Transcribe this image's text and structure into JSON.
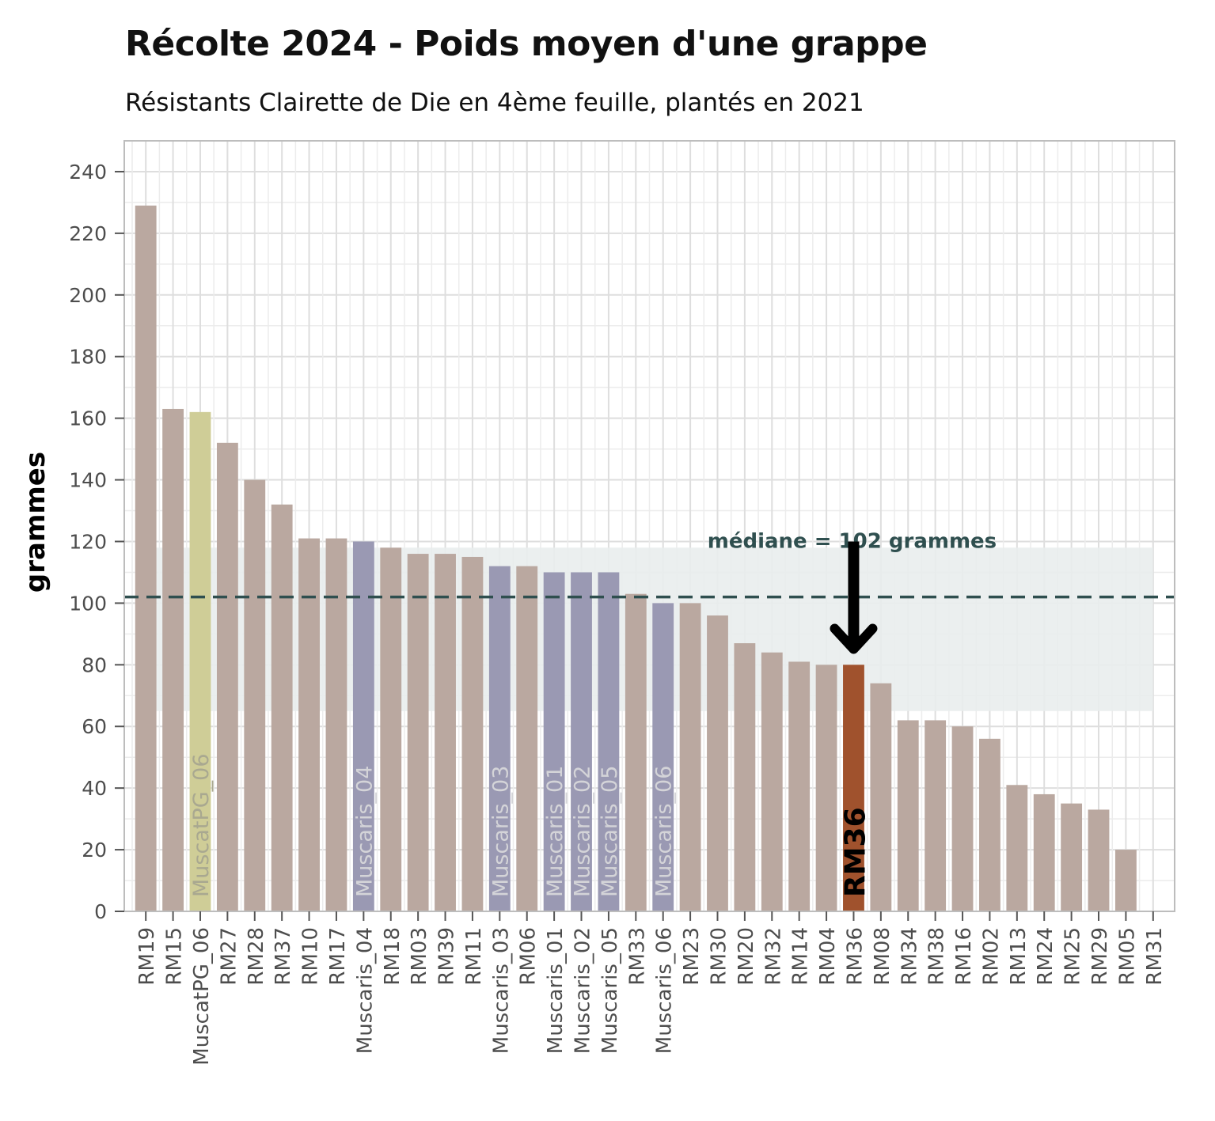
{
  "chart_data": {
    "type": "bar",
    "title": "Récolte 2024 - Poids moyen d'une grappe",
    "subtitle": "Résistants Clairette de Die en 4ème feuille, plantés en 2021",
    "xlabel": "",
    "ylabel": "grammes",
    "ylim": [
      0,
      250
    ],
    "yticks": [
      0,
      20,
      40,
      60,
      80,
      100,
      120,
      140,
      160,
      180,
      200,
      220,
      240
    ],
    "grid": true,
    "categories": [
      "RM19",
      "RM15",
      "MuscatPG_06",
      "RM27",
      "RM28",
      "RM37",
      "RM10",
      "RM17",
      "Muscaris_04",
      "RM18",
      "RM03",
      "RM39",
      "RM11",
      "Muscaris_03",
      "RM06",
      "Muscaris_01",
      "Muscaris_02",
      "Muscaris_05",
      "RM33",
      "Muscaris_06",
      "RM23",
      "RM30",
      "RM20",
      "RM32",
      "RM14",
      "RM04",
      "RM36",
      "RM08",
      "RM34",
      "RM38",
      "RM16",
      "RM02",
      "RM13",
      "RM24",
      "RM25",
      "RM29",
      "RM05",
      "RM31"
    ],
    "values": [
      229,
      163,
      162,
      152,
      140,
      132,
      121,
      121,
      120,
      118,
      116,
      116,
      115,
      112,
      112,
      110,
      110,
      110,
      103,
      100,
      100,
      96,
      87,
      84,
      81,
      80,
      80,
      74,
      62,
      62,
      60,
      56,
      41,
      38,
      35,
      33,
      20,
      null
    ],
    "groups": [
      "RM",
      "RM",
      "MuscatPG",
      "RM",
      "RM",
      "RM",
      "RM",
      "RM",
      "Muscaris",
      "RM",
      "RM",
      "RM",
      "RM",
      "Muscaris",
      "RM",
      "Muscaris",
      "Muscaris",
      "Muscaris",
      "RM",
      "Muscaris",
      "RM",
      "RM",
      "RM",
      "RM",
      "RM",
      "RM",
      "highlight",
      "RM",
      "RM",
      "RM",
      "RM",
      "RM",
      "RM",
      "RM",
      "RM",
      "RM",
      "RM",
      "RM"
    ],
    "colors": {
      "RM": "#baa8a0",
      "MuscatPG": "#cfcd97",
      "Muscaris": "#9a99b3",
      "highlight": "#a0522d",
      "band": "#e9eded",
      "median_line": "#2f4f4f"
    },
    "inbar_labels": [
      {
        "index": 2,
        "text": "MuscatPG_06",
        "color": "#a9a890"
      },
      {
        "index": 8,
        "text": "Muscaris_04",
        "color": "#d4d4d8"
      },
      {
        "index": 13,
        "text": "Muscaris_03",
        "color": "#d4d4d8"
      },
      {
        "index": 15,
        "text": "Muscaris_01",
        "color": "#d4d4d8"
      },
      {
        "index": 16,
        "text": "Muscaris_02",
        "color": "#d4d4d8"
      },
      {
        "index": 17,
        "text": "Muscaris_05",
        "color": "#d4d4d8"
      },
      {
        "index": 19,
        "text": "Muscaris_06",
        "color": "#d4d4d8"
      },
      {
        "index": 26,
        "text": "RM36",
        "color": "#000000"
      }
    ],
    "median": 102,
    "median_band": [
      65,
      118
    ],
    "annotation": {
      "text": "médiane = 102 grammes",
      "arrow_from": 120,
      "arrow_to": 82,
      "target": "RM36"
    }
  }
}
